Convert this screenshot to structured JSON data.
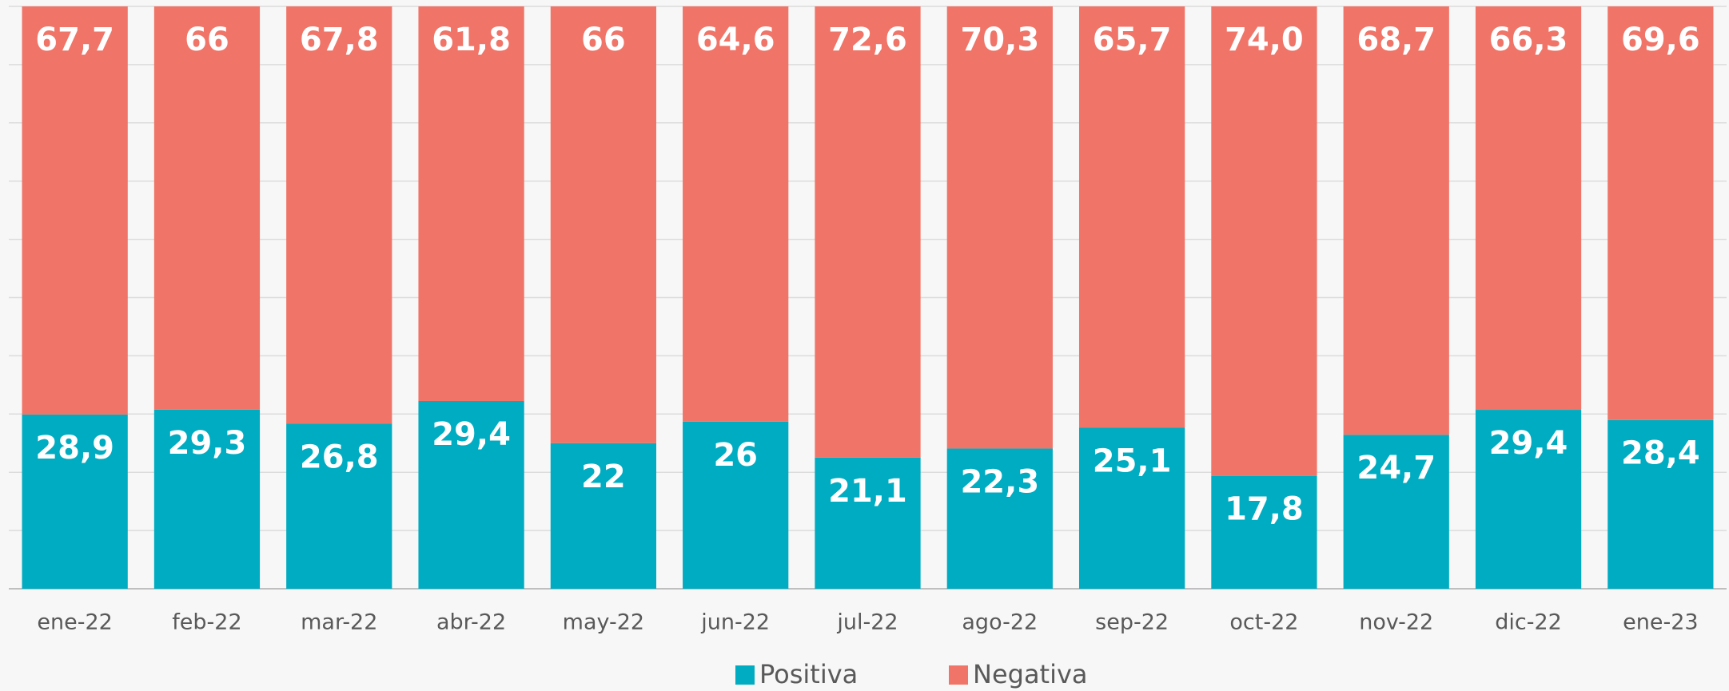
{
  "chart_data": {
    "type": "bar",
    "stacking": "percent",
    "categories": [
      "ene-22",
      "feb-22",
      "mar-22",
      "abr-22",
      "may-22",
      "jun-22",
      "jul-22",
      "ago-22",
      "sep-22",
      "oct-22",
      "nov-22",
      "dic-22",
      "ene-23"
    ],
    "series": [
      {
        "name": "Positiva",
        "color": "#00acc1",
        "values": [
          28.9,
          29.3,
          26.8,
          29.4,
          22,
          26,
          21.1,
          22.3,
          25.1,
          17.8,
          24.7,
          29.4,
          28.4
        ],
        "value_labels": [
          "28,9",
          "29,3",
          "26,8",
          "29,4",
          "22",
          "26",
          "21,1",
          "22,3",
          "25,1",
          "17,8",
          "24,7",
          "29,4",
          "28,4"
        ]
      },
      {
        "name": "Negativa",
        "color": "#f07467",
        "values": [
          67.7,
          66,
          67.8,
          61.8,
          66,
          64.6,
          72.6,
          70.3,
          65.7,
          74.0,
          68.7,
          66.3,
          69.6
        ],
        "value_labels": [
          "67,7",
          "66",
          "67,8",
          "61,8",
          "66",
          "64,6",
          "72,6",
          "70,3",
          "65,7",
          "74,0",
          "68,7",
          "66,3",
          "69,6"
        ]
      }
    ],
    "ylim": [
      0,
      100
    ],
    "yticks": [
      0,
      10,
      20,
      30,
      40,
      50,
      60,
      70,
      80,
      90,
      100
    ],
    "grid": true,
    "legend": "bottom"
  }
}
